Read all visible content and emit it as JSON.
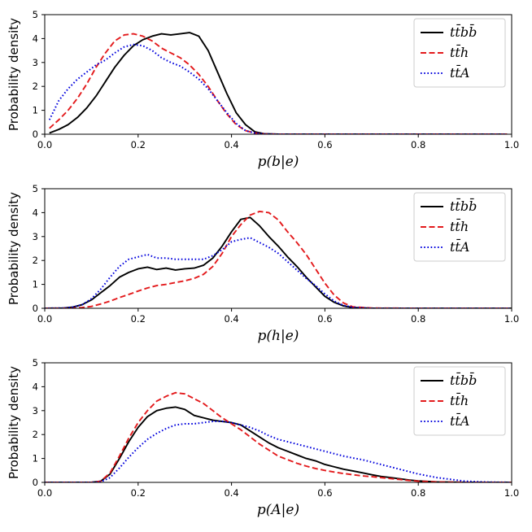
{
  "chart_data": [
    {
      "type": "line",
      "title": "",
      "xlabel": "p(b|e)",
      "ylabel": "Probability density",
      "xlim": [
        0.0,
        1.0
      ],
      "ylim": [
        0,
        5
      ],
      "xticks": [
        0.0,
        0.2,
        0.4,
        0.6,
        0.8,
        1.0
      ],
      "xtick_labels": [
        "0.0",
        "0.2",
        "0.4",
        "0.6",
        "0.8",
        "1.0"
      ],
      "yticks": [
        0,
        1,
        2,
        3,
        4,
        5
      ],
      "ytick_labels": [
        "0",
        "1",
        "2",
        "3",
        "4",
        "5"
      ],
      "legend_position": "top-right",
      "series": [
        {
          "name": "tt̄bb̄",
          "color": "#000000",
          "style": "solid",
          "x": [
            0.01,
            0.03,
            0.05,
            0.07,
            0.09,
            0.11,
            0.13,
            0.15,
            0.17,
            0.19,
            0.21,
            0.23,
            0.25,
            0.27,
            0.29,
            0.31,
            0.33,
            0.35,
            0.37,
            0.39,
            0.41,
            0.43,
            0.45,
            0.47,
            0.5,
            0.6,
            0.7,
            0.8,
            0.9,
            0.99
          ],
          "y": [
            0.05,
            0.2,
            0.4,
            0.7,
            1.1,
            1.6,
            2.2,
            2.8,
            3.3,
            3.7,
            3.95,
            4.1,
            4.2,
            4.15,
            4.2,
            4.25,
            4.1,
            3.5,
            2.6,
            1.7,
            0.9,
            0.4,
            0.1,
            0.02,
            0,
            0,
            0,
            0,
            0,
            0
          ]
        },
        {
          "name": "tt̄h",
          "color": "#e31a1c",
          "style": "dashed",
          "x": [
            0.01,
            0.03,
            0.05,
            0.07,
            0.09,
            0.11,
            0.13,
            0.15,
            0.17,
            0.19,
            0.21,
            0.23,
            0.25,
            0.27,
            0.29,
            0.31,
            0.33,
            0.35,
            0.37,
            0.39,
            0.41,
            0.43,
            0.45,
            0.47,
            0.5,
            0.6,
            0.7,
            0.8,
            0.9,
            0.99
          ],
          "y": [
            0.25,
            0.6,
            1.0,
            1.5,
            2.1,
            2.8,
            3.4,
            3.9,
            4.15,
            4.2,
            4.1,
            3.9,
            3.6,
            3.4,
            3.2,
            2.9,
            2.5,
            2.0,
            1.4,
            0.85,
            0.4,
            0.15,
            0.05,
            0.01,
            0,
            0,
            0,
            0,
            0,
            0
          ]
        },
        {
          "name": "tt̄A",
          "color": "#0000dd",
          "style": "dotted",
          "x": [
            0.01,
            0.03,
            0.05,
            0.07,
            0.09,
            0.11,
            0.13,
            0.15,
            0.17,
            0.19,
            0.21,
            0.23,
            0.25,
            0.27,
            0.29,
            0.31,
            0.33,
            0.35,
            0.37,
            0.39,
            0.41,
            0.43,
            0.45,
            0.47,
            0.5,
            0.6,
            0.7,
            0.8,
            0.9,
            0.99
          ],
          "y": [
            0.6,
            1.4,
            1.9,
            2.3,
            2.6,
            2.9,
            3.1,
            3.4,
            3.65,
            3.75,
            3.7,
            3.5,
            3.2,
            3.0,
            2.85,
            2.6,
            2.3,
            1.9,
            1.4,
            0.9,
            0.45,
            0.15,
            0.05,
            0.01,
            0,
            0,
            0,
            0,
            0,
            0
          ]
        }
      ]
    },
    {
      "type": "line",
      "title": "",
      "xlabel": "p(h|e)",
      "ylabel": "Probability density",
      "xlim": [
        0.0,
        1.0
      ],
      "ylim": [
        0,
        5
      ],
      "xticks": [
        0.0,
        0.2,
        0.4,
        0.6,
        0.8,
        1.0
      ],
      "xtick_labels": [
        "0.0",
        "0.2",
        "0.4",
        "0.6",
        "0.8",
        "1.0"
      ],
      "yticks": [
        0,
        1,
        2,
        3,
        4,
        5
      ],
      "ytick_labels": [
        "0",
        "1",
        "2",
        "3",
        "4",
        "5"
      ],
      "legend_position": "top-right",
      "series": [
        {
          "name": "tt̄bb̄",
          "color": "#000000",
          "style": "solid",
          "x": [
            0.0,
            0.04,
            0.06,
            0.08,
            0.1,
            0.12,
            0.14,
            0.16,
            0.18,
            0.2,
            0.22,
            0.24,
            0.26,
            0.28,
            0.3,
            0.32,
            0.34,
            0.36,
            0.38,
            0.4,
            0.42,
            0.44,
            0.46,
            0.48,
            0.5,
            0.52,
            0.54,
            0.56,
            0.58,
            0.6,
            0.62,
            0.64,
            0.66,
            0.7,
            0.8,
            1.0
          ],
          "y": [
            0,
            0.01,
            0.05,
            0.15,
            0.35,
            0.65,
            0.95,
            1.3,
            1.5,
            1.65,
            1.72,
            1.62,
            1.68,
            1.6,
            1.65,
            1.68,
            1.8,
            2.1,
            2.6,
            3.2,
            3.72,
            3.8,
            3.45,
            3.0,
            2.6,
            2.15,
            1.75,
            1.3,
            0.9,
            0.5,
            0.25,
            0.1,
            0.03,
            0,
            0,
            0
          ]
        },
        {
          "name": "tt̄h",
          "color": "#e31a1c",
          "style": "dashed",
          "x": [
            0.0,
            0.04,
            0.06,
            0.08,
            0.1,
            0.12,
            0.14,
            0.16,
            0.18,
            0.2,
            0.22,
            0.24,
            0.26,
            0.28,
            0.3,
            0.32,
            0.34,
            0.36,
            0.38,
            0.4,
            0.42,
            0.44,
            0.46,
            0.48,
            0.5,
            0.52,
            0.54,
            0.56,
            0.58,
            0.6,
            0.62,
            0.64,
            0.66,
            0.7,
            0.8,
            1.0
          ],
          "y": [
            0,
            0,
            0.01,
            0.03,
            0.08,
            0.18,
            0.3,
            0.45,
            0.58,
            0.72,
            0.85,
            0.95,
            1.0,
            1.08,
            1.15,
            1.25,
            1.42,
            1.75,
            2.3,
            3.0,
            3.5,
            3.9,
            4.05,
            4.0,
            3.7,
            3.2,
            2.75,
            2.25,
            1.65,
            1.05,
            0.55,
            0.22,
            0.06,
            0.01,
            0,
            0
          ]
        },
        {
          "name": "tt̄A",
          "color": "#0000dd",
          "style": "dotted",
          "x": [
            0.0,
            0.04,
            0.06,
            0.08,
            0.1,
            0.12,
            0.14,
            0.16,
            0.18,
            0.2,
            0.22,
            0.24,
            0.26,
            0.28,
            0.3,
            0.32,
            0.34,
            0.36,
            0.38,
            0.4,
            0.42,
            0.44,
            0.46,
            0.48,
            0.5,
            0.52,
            0.54,
            0.56,
            0.58,
            0.6,
            0.62,
            0.64,
            0.66,
            0.7,
            0.8,
            1.0
          ],
          "y": [
            0,
            0.01,
            0.05,
            0.15,
            0.4,
            0.8,
            1.3,
            1.75,
            2.05,
            2.15,
            2.25,
            2.1,
            2.1,
            2.05,
            2.05,
            2.05,
            2.05,
            2.2,
            2.45,
            2.78,
            2.88,
            2.95,
            2.75,
            2.55,
            2.3,
            1.95,
            1.6,
            1.25,
            0.95,
            0.6,
            0.3,
            0.12,
            0.04,
            0,
            0,
            0
          ]
        }
      ]
    },
    {
      "type": "line",
      "title": "",
      "xlabel": "p(A|e)",
      "ylabel": "Probability density",
      "xlim": [
        0.0,
        1.0
      ],
      "ylim": [
        0,
        5
      ],
      "xticks": [
        0.0,
        0.2,
        0.4,
        0.6,
        0.8,
        1.0
      ],
      "xtick_labels": [
        "0.0",
        "0.2",
        "0.4",
        "0.6",
        "0.8",
        "1.0"
      ],
      "yticks": [
        0,
        1,
        2,
        3,
        4,
        5
      ],
      "ytick_labels": [
        "0",
        "1",
        "2",
        "3",
        "4",
        "5"
      ],
      "legend_position": "top-right",
      "series": [
        {
          "name": "tt̄bb̄",
          "color": "#000000",
          "style": "solid",
          "x": [
            0.0,
            0.1,
            0.12,
            0.14,
            0.16,
            0.18,
            0.2,
            0.22,
            0.24,
            0.26,
            0.28,
            0.3,
            0.32,
            0.34,
            0.36,
            0.38,
            0.4,
            0.42,
            0.44,
            0.46,
            0.48,
            0.5,
            0.52,
            0.54,
            0.56,
            0.58,
            0.6,
            0.62,
            0.64,
            0.66,
            0.68,
            0.7,
            0.72,
            0.74,
            0.76,
            0.78,
            0.8,
            0.84,
            0.9,
            1.0
          ],
          "y": [
            0,
            0,
            0.05,
            0.35,
            1.0,
            1.7,
            2.3,
            2.75,
            3.0,
            3.1,
            3.15,
            3.05,
            2.8,
            2.7,
            2.6,
            2.55,
            2.5,
            2.4,
            2.15,
            1.9,
            1.65,
            1.45,
            1.3,
            1.15,
            1.0,
            0.9,
            0.75,
            0.65,
            0.55,
            0.48,
            0.4,
            0.32,
            0.25,
            0.2,
            0.15,
            0.1,
            0.06,
            0.02,
            0,
            0
          ]
        },
        {
          "name": "tt̄h",
          "color": "#e31a1c",
          "style": "dashed",
          "x": [
            0.0,
            0.1,
            0.12,
            0.14,
            0.16,
            0.18,
            0.2,
            0.22,
            0.24,
            0.26,
            0.28,
            0.3,
            0.32,
            0.34,
            0.36,
            0.38,
            0.4,
            0.42,
            0.44,
            0.46,
            0.48,
            0.5,
            0.52,
            0.54,
            0.56,
            0.58,
            0.6,
            0.62,
            0.64,
            0.66,
            0.68,
            0.7,
            0.72,
            0.74,
            0.76,
            0.78,
            0.8,
            0.84,
            0.9,
            1.0
          ],
          "y": [
            0,
            0,
            0.05,
            0.4,
            1.1,
            1.85,
            2.5,
            3.0,
            3.4,
            3.6,
            3.75,
            3.7,
            3.5,
            3.3,
            3.0,
            2.7,
            2.45,
            2.2,
            1.9,
            1.6,
            1.35,
            1.1,
            0.95,
            0.8,
            0.68,
            0.58,
            0.5,
            0.43,
            0.37,
            0.32,
            0.27,
            0.24,
            0.2,
            0.16,
            0.12,
            0.08,
            0.05,
            0.02,
            0,
            0
          ]
        },
        {
          "name": "tt̄A",
          "color": "#0000dd",
          "style": "dotted",
          "x": [
            0.0,
            0.1,
            0.12,
            0.14,
            0.16,
            0.18,
            0.2,
            0.22,
            0.24,
            0.26,
            0.28,
            0.3,
            0.32,
            0.34,
            0.36,
            0.38,
            0.4,
            0.42,
            0.44,
            0.46,
            0.48,
            0.5,
            0.52,
            0.54,
            0.56,
            0.58,
            0.6,
            0.62,
            0.64,
            0.66,
            0.68,
            0.7,
            0.72,
            0.74,
            0.76,
            0.78,
            0.8,
            0.84,
            0.9,
            0.95,
            1.0
          ],
          "y": [
            0,
            0,
            0.02,
            0.2,
            0.6,
            1.05,
            1.45,
            1.8,
            2.05,
            2.25,
            2.4,
            2.45,
            2.45,
            2.5,
            2.55,
            2.55,
            2.5,
            2.4,
            2.3,
            2.15,
            1.95,
            1.8,
            1.7,
            1.6,
            1.5,
            1.4,
            1.3,
            1.2,
            1.1,
            1.02,
            0.95,
            0.85,
            0.75,
            0.65,
            0.55,
            0.45,
            0.35,
            0.2,
            0.05,
            0.01,
            0
          ]
        }
      ]
    }
  ]
}
